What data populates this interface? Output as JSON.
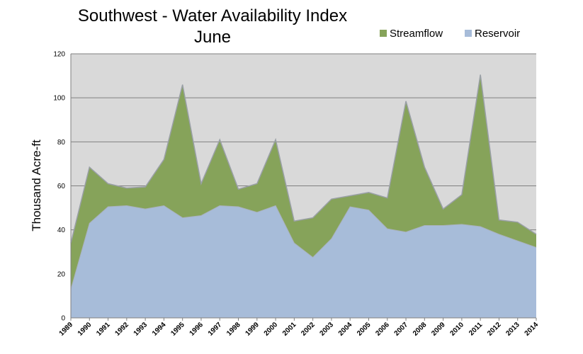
{
  "chart_data": {
    "type": "area",
    "stacked": true,
    "title": "Southwest - Water Availability Index",
    "subtitle": "June",
    "xlabel": "",
    "ylabel": "Thousand Acre-ft",
    "ylim": [
      0,
      120
    ],
    "yticks": [
      0,
      20,
      40,
      60,
      80,
      100,
      120
    ],
    "grid": true,
    "legend_position": "top-right",
    "categories": [
      "1989",
      "1990",
      "1991",
      "1992",
      "1993",
      "1994",
      "1995",
      "1996",
      "1997",
      "1998",
      "1999",
      "2000",
      "2001",
      "2002",
      "2003",
      "2004",
      "2005",
      "2006",
      "2007",
      "2008",
      "2009",
      "2010",
      "2011",
      "2012",
      "2013",
      "2014"
    ],
    "series": [
      {
        "name": "Reservoir",
        "color": "#a7bcd9",
        "values": [
          13,
          43,
          50.5,
          51,
          49.5,
          51,
          45.5,
          46.5,
          51,
          50.5,
          48,
          51,
          34,
          27.5,
          36,
          50.5,
          49,
          40.5,
          39,
          42,
          42,
          42.5,
          41.5,
          38,
          35,
          32
        ]
      },
      {
        "name": "Streamflow",
        "color": "#86a35a",
        "values": [
          21,
          25.5,
          10.5,
          8,
          10,
          21,
          60.5,
          14.5,
          30,
          8,
          13,
          30,
          10,
          18,
          18,
          5,
          8,
          14,
          59.5,
          26.5,
          7.5,
          13.5,
          69,
          6.5,
          8.5,
          6
        ]
      }
    ]
  }
}
